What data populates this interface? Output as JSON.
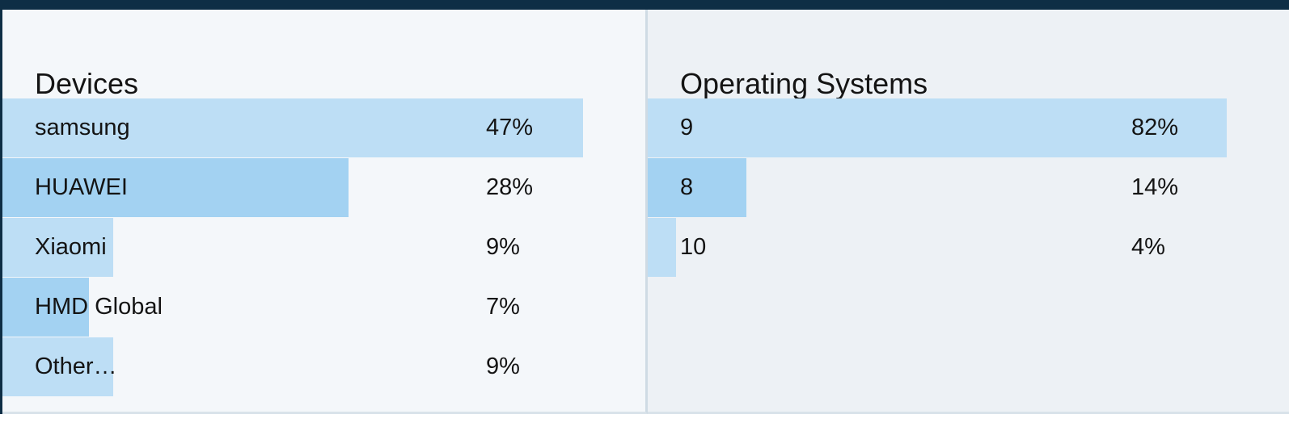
{
  "colors": {
    "topbar": "#0e2e45",
    "panel_left_bg": "#f4f7fa",
    "panel_right_bg": "#edf1f5",
    "bar_light": "#bddef5",
    "bar_dark": "#a3d2f2",
    "divider": "#cfdbe4",
    "bottom_border": "#d9e3ea",
    "text": "#141414"
  },
  "chart_data": [
    {
      "type": "bar",
      "orientation": "horizontal",
      "title": "Devices",
      "categories": [
        "samsung",
        "HUAWEI",
        "Xiaomi",
        "HMD Global",
        "Other…"
      ],
      "values": [
        47,
        28,
        9,
        7,
        9
      ],
      "value_labels": [
        "47%",
        "28%",
        "9%",
        "7%",
        "9%"
      ],
      "unit": "%",
      "grid": false,
      "legend": "none",
      "bar_scale_note": "longest bar spans ~90.3% of panel width"
    },
    {
      "type": "bar",
      "orientation": "horizontal",
      "title": "Operating Systems",
      "categories": [
        "9",
        "8",
        "10"
      ],
      "values": [
        82,
        14,
        4
      ],
      "value_labels": [
        "82%",
        "14%",
        "4%"
      ],
      "unit": "%",
      "grid": false,
      "legend": "none",
      "bar_scale_note": "longest bar spans ~90.3% of panel width"
    }
  ]
}
